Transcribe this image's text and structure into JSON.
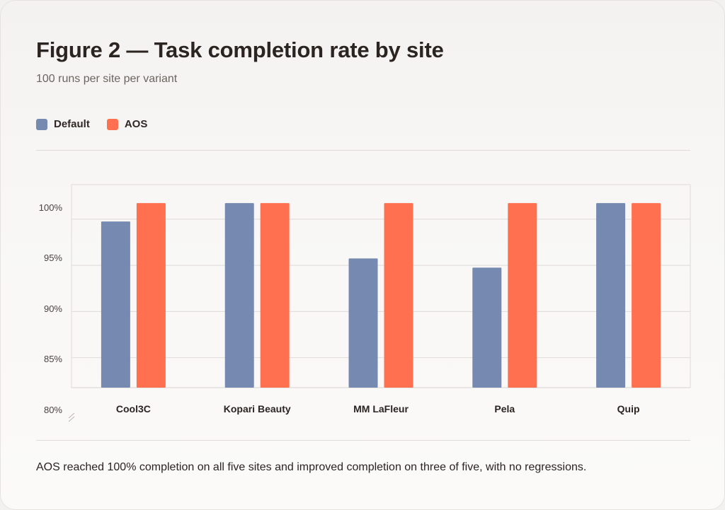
{
  "title": "Figure 2 — Task completion rate by site",
  "subtitle": "100 runs per site per variant",
  "caption": "AOS reached 100% completion on all five sites and improved completion on three of five, with no regressions.",
  "legend": [
    {
      "label": "Default",
      "color": "#7589b1"
    },
    {
      "label": "AOS",
      "color": "#ff7050"
    }
  ],
  "chart_data": {
    "type": "bar",
    "categories": [
      "Cool3C",
      "Kopari Beauty",
      "MM LaFleur",
      "Pela",
      "Quip"
    ],
    "series": [
      {
        "name": "Default",
        "color": "#7589b1",
        "values": [
          98,
          100,
          94,
          93,
          100
        ]
      },
      {
        "name": "AOS",
        "color": "#ff7050",
        "values": [
          100,
          100,
          100,
          100,
          100
        ]
      }
    ],
    "y_ticks": [
      "80%",
      "85%",
      "90%",
      "95%",
      "100%"
    ],
    "ylim": [
      80,
      102
    ],
    "grid": true,
    "legend_position": "top-left"
  }
}
